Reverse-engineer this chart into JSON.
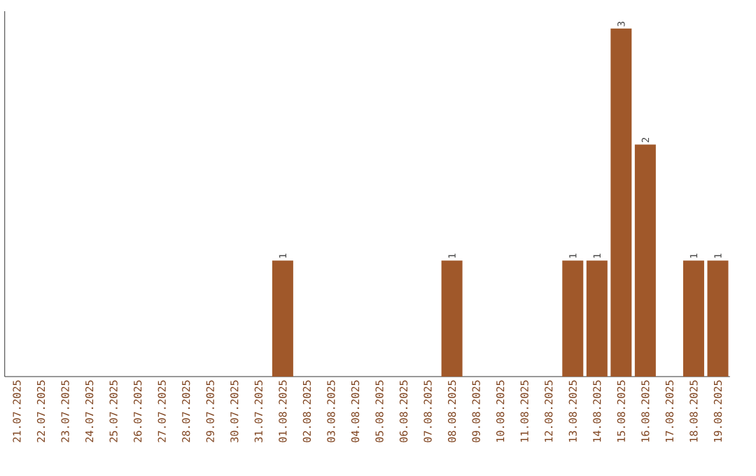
{
  "chart_data": {
    "type": "bar",
    "categories": [
      "21.07.2025",
      "22.07.2025",
      "23.07.2025",
      "24.07.2025",
      "25.07.2025",
      "26.07.2025",
      "27.07.2025",
      "28.07.2025",
      "29.07.2025",
      "30.07.2025",
      "31.07.2025",
      "01.08.2025",
      "02.08.2025",
      "03.08.2025",
      "04.08.2025",
      "05.08.2025",
      "06.08.2025",
      "07.08.2025",
      "08.08.2025",
      "09.08.2025",
      "10.08.2025",
      "11.08.2025",
      "12.08.2025",
      "13.08.2025",
      "14.08.2025",
      "15.08.2025",
      "16.08.2025",
      "17.08.2025",
      "18.08.2025",
      "19.08.2025"
    ],
    "values": [
      0,
      0,
      0,
      0,
      0,
      0,
      0,
      0,
      0,
      0,
      0,
      1,
      0,
      0,
      0,
      0,
      0,
      0,
      1,
      0,
      0,
      0,
      0,
      1,
      1,
      3,
      2,
      0,
      1,
      1
    ],
    "value_labels": [
      null,
      null,
      null,
      null,
      null,
      null,
      null,
      null,
      null,
      null,
      null,
      "1",
      null,
      null,
      null,
      null,
      null,
      null,
      "1",
      null,
      null,
      null,
      null,
      "1",
      "1",
      "3",
      "2",
      null,
      "1",
      "1"
    ],
    "color": "#a0582a",
    "ylim": [
      0,
      3.15
    ],
    "tick_labels": "x"
  }
}
